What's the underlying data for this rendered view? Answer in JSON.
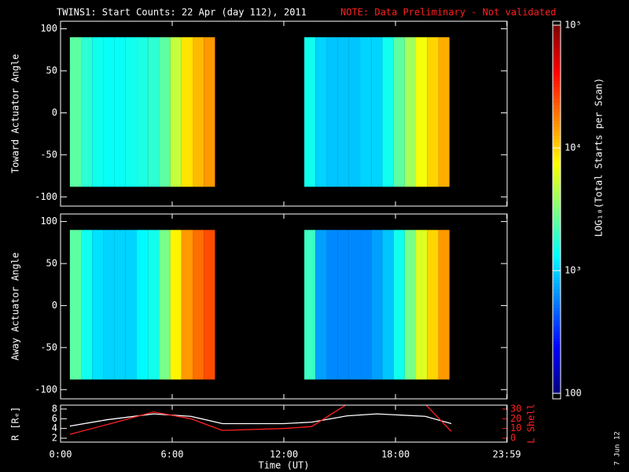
{
  "title": "TWINS1: Start Counts: 22 Apr (day 112), 2011",
  "note": "NOTE: Data Preliminary - Not validated",
  "footer": "7 Jun 12",
  "colorbar": {
    "label": "LOG₁₀(Total Starts per Scan)",
    "lim": [
      100,
      100000
    ],
    "log": true,
    "ticks": [
      100,
      {
        "value": 1000,
        "label": "10³"
      },
      {
        "value": 10000,
        "label": "10⁴"
      },
      {
        "value": 100000,
        "label": "10⁵"
      }
    ]
  },
  "chart_data": [
    {
      "type": "heatmap",
      "ylabel": "Toward Actuator Angle",
      "xlim": [
        0,
        24
      ],
      "ylim": [
        -111,
        109
      ],
      "yticks": [
        -100,
        -50,
        0,
        50,
        100
      ],
      "angle_range": [
        -88,
        90
      ],
      "segments": [
        {
          "bins": [
            0.5,
            1.1,
            1.7,
            2.3,
            2.9,
            3.5,
            4.1,
            4.7,
            5.3,
            5.9,
            6.5,
            7.1,
            7.7,
            8.3
          ],
          "values": [
            2500,
            1800,
            1500,
            1400,
            1400,
            1500,
            1600,
            1800,
            2500,
            5000,
            9000,
            12000,
            15000
          ]
        },
        {
          "bins": [
            13.1,
            13.7,
            14.3,
            14.9,
            15.5,
            16.1,
            16.7,
            17.3,
            17.9,
            18.5,
            19.1,
            19.7,
            20.3,
            20.9
          ],
          "values": [
            1500,
            1000,
            900,
            900,
            900,
            1000,
            1000,
            1500,
            2500,
            4000,
            7000,
            10000,
            13000
          ]
        }
      ]
    },
    {
      "type": "heatmap",
      "ylabel": "Away Actuator Angle",
      "xlim": [
        0,
        24
      ],
      "ylim": [
        -111,
        109
      ],
      "yticks": [
        -100,
        -50,
        0,
        50,
        100
      ],
      "angle_range": [
        -88,
        90
      ],
      "segments": [
        {
          "bins": [
            0.5,
            1.1,
            1.7,
            2.3,
            2.9,
            3.5,
            4.1,
            4.7,
            5.3,
            5.9,
            6.5,
            7.1,
            7.7,
            8.3
          ],
          "values": [
            2500,
            1500,
            1100,
            1000,
            1000,
            1000,
            1300,
            1500,
            3000,
            8000,
            15000,
            20000,
            25000
          ]
        },
        {
          "bins": [
            13.1,
            13.7,
            14.3,
            14.9,
            15.5,
            16.1,
            16.7,
            17.3,
            17.9,
            18.5,
            19.1,
            19.7,
            20.3,
            20.9
          ],
          "values": [
            2000,
            700,
            600,
            600,
            600,
            600,
            700,
            900,
            1500,
            3000,
            6000,
            10000,
            15000
          ]
        }
      ]
    },
    {
      "type": "line",
      "xlabel": "Time (UT)",
      "ylabel": "R [Rₑ]",
      "y2label": "L Shell",
      "xlim": [
        0,
        24
      ],
      "xticks": [
        {
          "value": 0,
          "label": "0:00"
        },
        {
          "value": 6,
          "label": "6:00"
        },
        {
          "value": 12,
          "label": "12:00"
        },
        {
          "value": 18,
          "label": "18:00"
        },
        {
          "value": 23.983,
          "label": "23:59"
        }
      ],
      "ylim": [
        1.2,
        8.8
      ],
      "yticks": [
        2,
        4,
        6,
        8
      ],
      "y2lim": [
        -4,
        34
      ],
      "y2ticks": [
        0,
        10,
        20,
        30
      ],
      "x": [
        0.5,
        2.5,
        5,
        7,
        8.7,
        12,
        13.5,
        15.4,
        17,
        19.6,
        21
      ],
      "series": [
        {
          "name": "R",
          "color": "#ffffff",
          "values": [
            4.5,
            5.8,
            7,
            6.5,
            5,
            5,
            5.3,
            6.6,
            7,
            6.5,
            5
          ]
        },
        {
          "name": "L Shell",
          "color": "#ff2020",
          "axis": "y2",
          "values": [
            4,
            14,
            27,
            20,
            8,
            10,
            12,
            35,
            null,
            35,
            7
          ]
        }
      ]
    }
  ]
}
